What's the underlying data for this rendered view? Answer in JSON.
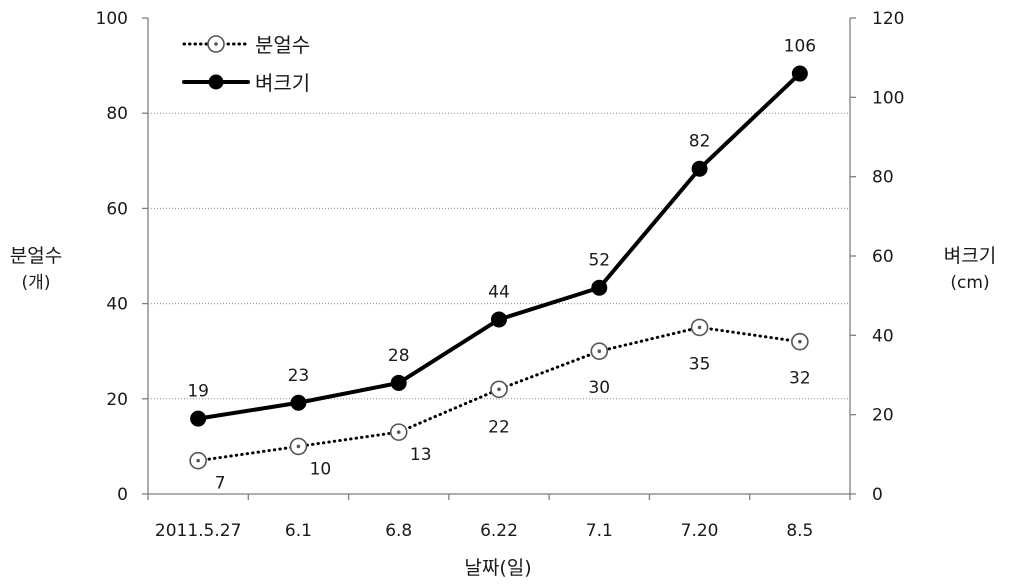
{
  "chart_data": {
    "type": "line",
    "categories": [
      "2011.5.27",
      "6.1",
      "6.8",
      "6.22",
      "7.1",
      "7.20",
      "8.5"
    ],
    "xlabel": "날짜(일)",
    "ylabel_left": {
      "line1": "분얼수",
      "line2": "(개)"
    },
    "ylabel_right": {
      "line1": "벼크기",
      "line2": "(cm)"
    },
    "ylim_left": [
      0,
      100
    ],
    "yticks_left": [
      0,
      20,
      40,
      60,
      80,
      100
    ],
    "ylim_right": [
      0,
      120
    ],
    "yticks_right": [
      0,
      20,
      40,
      60,
      80,
      100,
      120
    ],
    "grid": true,
    "legend_position": "top-left",
    "series": [
      {
        "name": "분얼수",
        "axis": "left",
        "style": "dotted",
        "marker": "open-circle-dot",
        "color": "#000000",
        "values": [
          7,
          10,
          13,
          22,
          30,
          35,
          32
        ],
        "labels": [
          "7",
          "10",
          "13",
          "22",
          "30",
          "35",
          "32"
        ]
      },
      {
        "name": "벼크기",
        "axis": "right",
        "style": "solid",
        "marker": "filled-circle",
        "color": "#000000",
        "values": [
          19,
          23,
          28,
          44,
          52,
          82,
          106
        ],
        "labels": [
          "19",
          "23",
          "28",
          "44",
          "52",
          "82",
          "106"
        ]
      }
    ]
  }
}
